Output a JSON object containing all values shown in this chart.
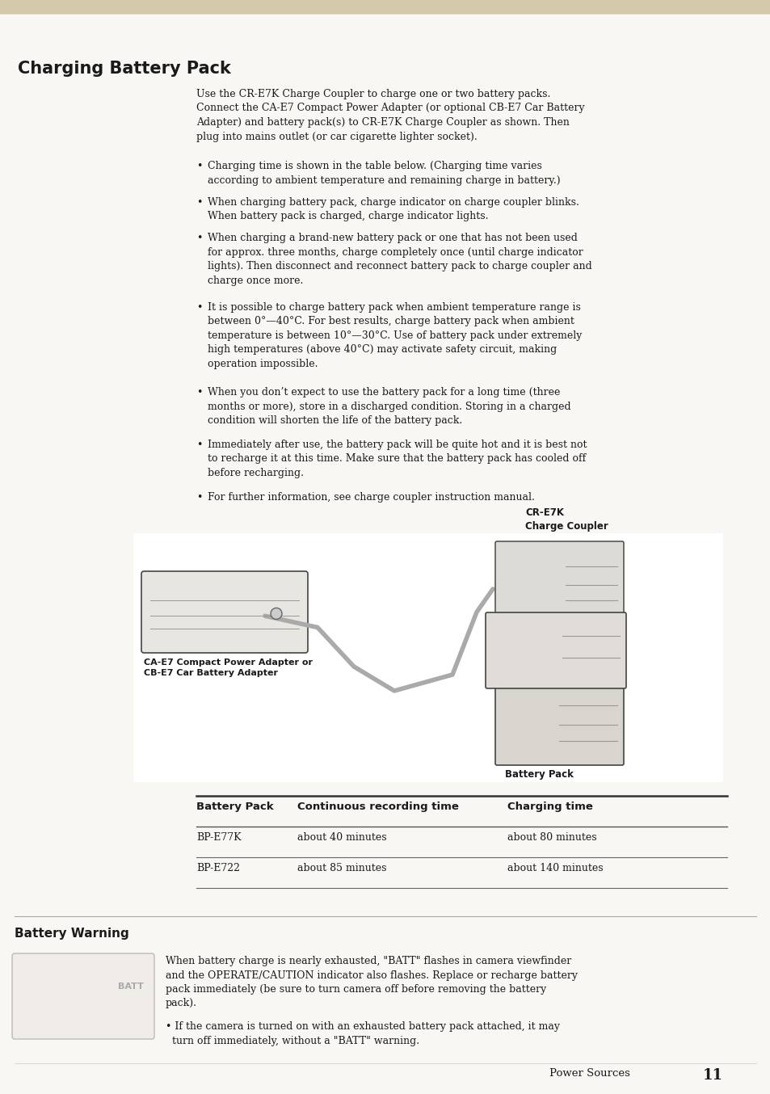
{
  "page_bg": "#F8F7F4",
  "header_bar_color": "#D4C9A8",
  "title": "Charging Battery Pack",
  "body_intro": "Use the CR-E7K Charge Coupler to charge one or two battery packs.\nConnect the CA-E7 Compact Power Adapter (or optional CB-E7 Car Battery\nAdapter) and battery pack(s) to CR-E7K Charge Coupler as shown. Then\nplug into mains outlet (or car cigarette lighter socket).",
  "bullet_points": [
    "Charging time is shown in the table below. (Charging time varies\naccording to ambient temperature and remaining charge in battery.)",
    "When charging battery pack, charge indicator on charge coupler blinks.\nWhen battery pack is charged, charge indicator lights.",
    "When charging a brand-new battery pack or one that has not been used\nfor approx. three months, charge completely once (until charge indicator\nlights). Then disconnect and reconnect battery pack to charge coupler and\ncharge once more.",
    "It is possible to charge battery pack when ambient temperature range is\nbetween 0°—40°C. For best results, charge battery pack when ambient\ntemperature is between 10°—30°C. Use of battery pack under extremely\nhigh temperatures (above 40°C) may activate safety circuit, making\noperation impossible.",
    "When you don’t expect to use the battery pack for a long time (three\nmonths or more), store in a discharged condition. Storing in a charged\ncondition will shorten the life of the battery pack.",
    "Immediately after use, the battery pack will be quite hot and it is best not\nto recharge it at this time. Make sure that the battery pack has cooled off\nbefore recharging.",
    "For further information, see charge coupler instruction manual."
  ],
  "diagram_label_left": "CA-E7 Compact Power Adapter or\nCB-E7 Car Battery Adapter",
  "diagram_label_right": "Battery Pack",
  "diagram_label_top_right": "CR-E7K\nCharge Coupler",
  "table_header": [
    "Battery Pack",
    "Continuous recording time",
    "Charging time"
  ],
  "table_rows": [
    [
      "BP-E77K",
      "about 40 minutes",
      "about 80 minutes"
    ],
    [
      "BP-E722",
      "about 85 minutes",
      "about 140 minutes"
    ]
  ],
  "battery_warning_title": "Battery Warning",
  "battery_warning_text1": "When battery charge is nearly exhausted, \"BATT\" flashes in camera viewfinder\nand the OPERATE/CAUTION indicator also flashes. Replace or recharge battery\npack immediately (be sure to turn camera off before removing the battery\npack).",
  "battery_warning_text2": "• If the camera is turned on with an exhausted battery pack attached, it may\n  turn off immediately, without a \"BATT\" warning.",
  "page_number": "11",
  "footer_text": "Power Sources",
  "text_color": "#1a1a1a",
  "body_fontsize": 9.0,
  "table_fontsize": 9.5
}
